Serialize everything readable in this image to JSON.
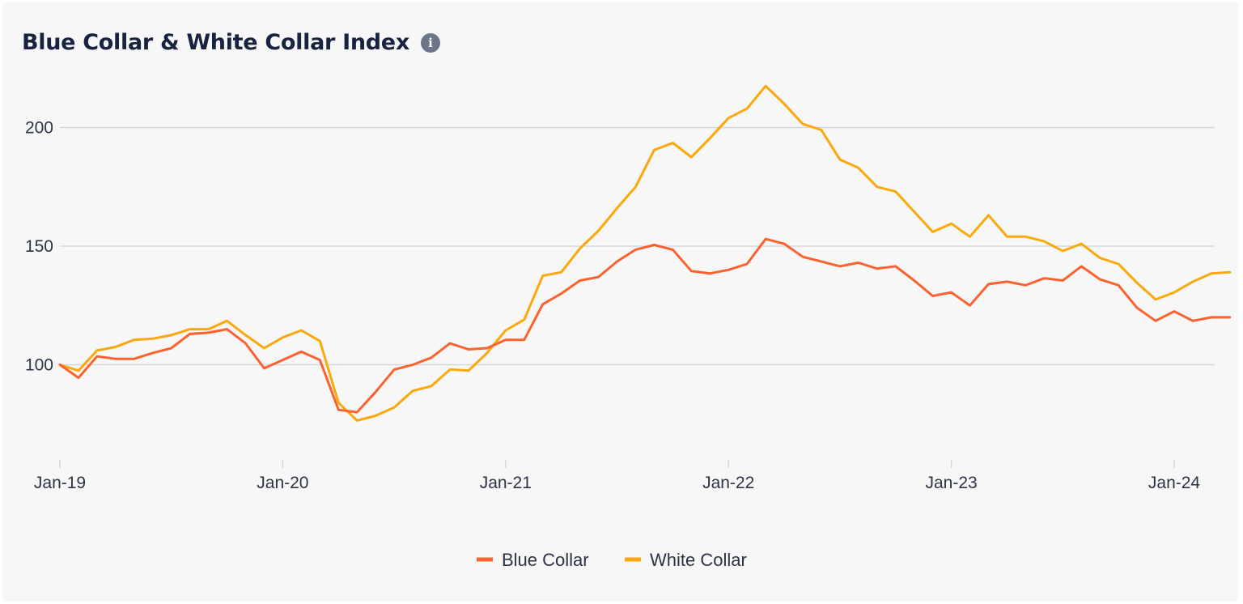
{
  "title": "Blue Collar & White Collar Index",
  "info_icon": "info-icon",
  "colors": {
    "blue_collar": "#fb6230",
    "white_collar": "#fba80d",
    "grid": "#cfd3dc",
    "title": "#17233f"
  },
  "chart_data": {
    "type": "line",
    "title": "Blue Collar & White Collar Index",
    "xlabel": "",
    "ylabel": "",
    "x": [
      "2019-01",
      "2019-02",
      "2019-03",
      "2019-04",
      "2019-05",
      "2019-06",
      "2019-07",
      "2019-08",
      "2019-09",
      "2019-10",
      "2019-11",
      "2019-12",
      "2020-01",
      "2020-02",
      "2020-03",
      "2020-04",
      "2020-05",
      "2020-06",
      "2020-07",
      "2020-08",
      "2020-09",
      "2020-10",
      "2020-11",
      "2020-12",
      "2021-01",
      "2021-02",
      "2021-03",
      "2021-04",
      "2021-05",
      "2021-06",
      "2021-07",
      "2021-08",
      "2021-09",
      "2021-10",
      "2021-11",
      "2021-12",
      "2022-01",
      "2022-02",
      "2022-03",
      "2022-04",
      "2022-05",
      "2022-06",
      "2022-07",
      "2022-08",
      "2022-09",
      "2022-10",
      "2022-11",
      "2022-12",
      "2023-01",
      "2023-02",
      "2023-03",
      "2023-04",
      "2023-05",
      "2023-06",
      "2023-07",
      "2023-08",
      "2023-09",
      "2023-10",
      "2023-11",
      "2023-12",
      "2024-01",
      "2024-02",
      "2024-03",
      "2024-04"
    ],
    "xtick_labels": [
      "Jan-19",
      "Jan-20",
      "Jan-21",
      "Jan-22",
      "Jan-23",
      "Jan-24"
    ],
    "xtick_values": [
      "2019-01",
      "2020-01",
      "2021-01",
      "2022-01",
      "2023-01",
      "2024-01"
    ],
    "yticks": [
      100,
      150,
      200
    ],
    "ylim": [
      61,
      222
    ],
    "grid": true,
    "legend_position": "bottom-center",
    "series": [
      {
        "name": "Blue Collar",
        "color": "#fb6230",
        "values": [
          100,
          94.5,
          103.5,
          102.5,
          102.5,
          105,
          107,
          113,
          113.5,
          115,
          109,
          98.5,
          102,
          105.5,
          102,
          81,
          80,
          88.5,
          98,
          100,
          103,
          109,
          106.5,
          107,
          110.5,
          110.5,
          125.5,
          130,
          135.5,
          137,
          143.5,
          148.5,
          150.5,
          148.5,
          139.5,
          138.5,
          140,
          142.5,
          153,
          151,
          145.5,
          143.5,
          141.5,
          143,
          140.5,
          141.5,
          135.5,
          129,
          130.5,
          125,
          134,
          135,
          133.5,
          136.5,
          135.5,
          141.5,
          136,
          133.5,
          124,
          118.5,
          122.5,
          118.5,
          120,
          120
        ]
      },
      {
        "name": "White Collar",
        "color": "#fba80d",
        "values": [
          100,
          97.5,
          106,
          107.5,
          110.5,
          111,
          112.5,
          115,
          115,
          118.5,
          112.5,
          107,
          111.5,
          114.5,
          110,
          84,
          76.5,
          78.5,
          82,
          89,
          91,
          98,
          97.5,
          105,
          114.5,
          119,
          137.5,
          139,
          149,
          156.5,
          166,
          175,
          190.5,
          193.5,
          187.5,
          195.5,
          204,
          208,
          217.5,
          210,
          201.5,
          199,
          186.5,
          183,
          175,
          173,
          164.5,
          156,
          159.5,
          154,
          163,
          154,
          154,
          152,
          148,
          151,
          145,
          142.5,
          134.5,
          127.5,
          130.5,
          135,
          138.5,
          139
        ]
      }
    ]
  }
}
